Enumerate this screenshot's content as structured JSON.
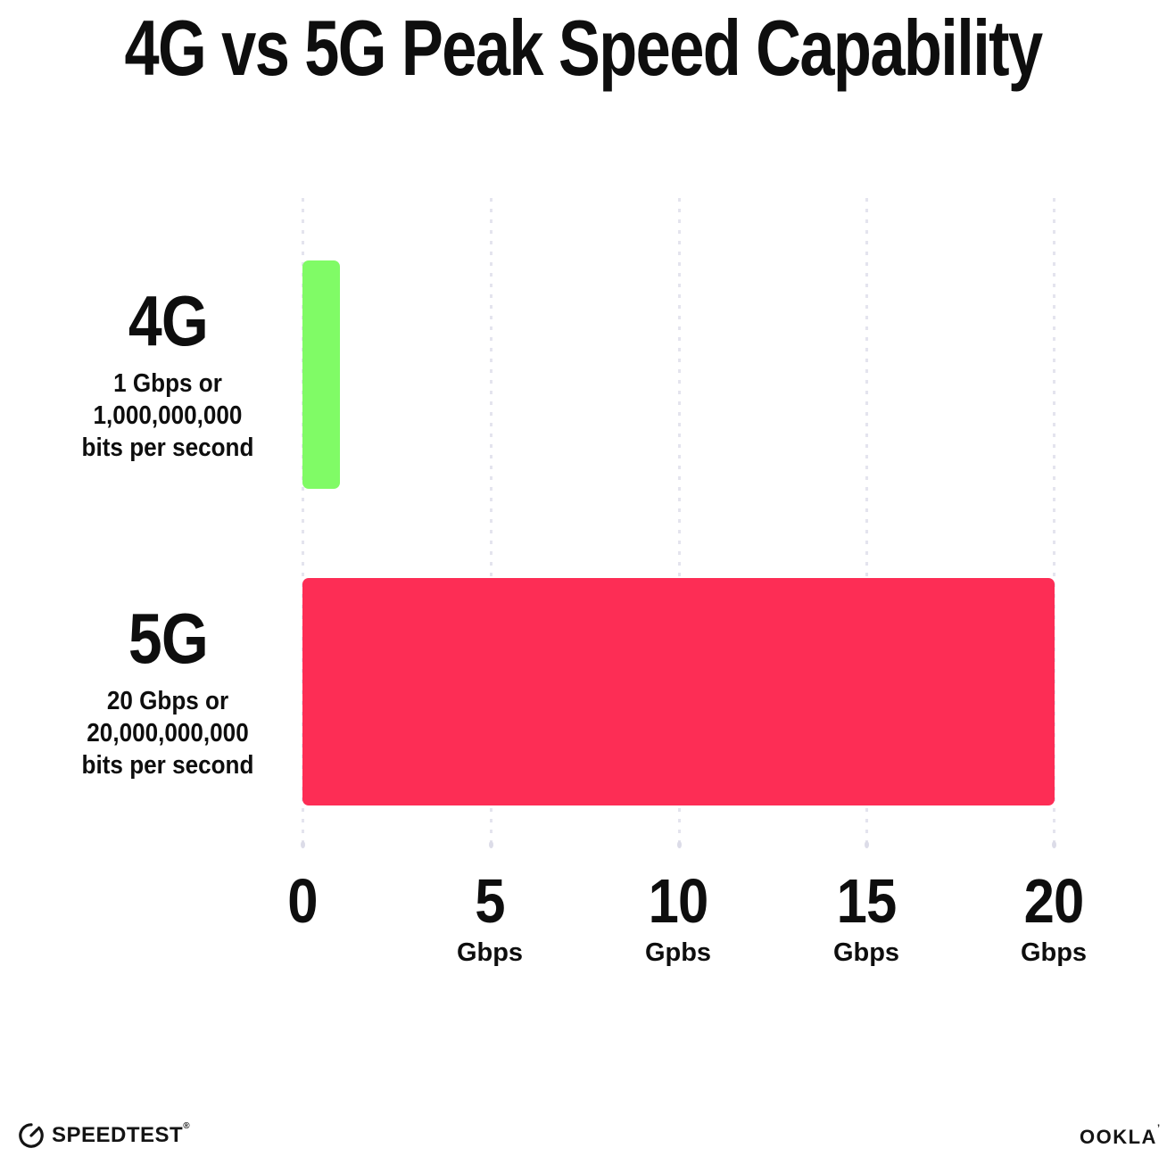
{
  "title": "4G vs 5G Peak Speed Capability",
  "colors": {
    "background": "#ffffff",
    "text": "#0e0e0e",
    "grid": "#e4e4ee",
    "bar_4g_green": "#80FB66",
    "bar_5g_red": "#FD2D55"
  },
  "chart_data": {
    "type": "bar",
    "orientation": "horizontal",
    "title": "4G vs 5G Peak Speed Capability",
    "categories": [
      "4G",
      "5G"
    ],
    "values": [
      1,
      20
    ],
    "unit": "Gbps",
    "xlim": [
      0,
      20
    ],
    "xlabel": "",
    "ylabel": "",
    "grid": "vertical dotted gridlines every 5 Gbps",
    "legend": "none",
    "bar_colors": [
      "#80FB66",
      "#FD2D55"
    ],
    "x_ticks": [
      {
        "label": "0",
        "unit": ""
      },
      {
        "label": "5",
        "unit": "Gbps"
      },
      {
        "label": "10",
        "unit": "Gpbs"
      },
      {
        "label": "15",
        "unit": "Gbps"
      },
      {
        "label": "20",
        "unit": "Gbps"
      }
    ],
    "series_labels": [
      {
        "name": "4G",
        "sub1": "1 Gbps or",
        "sub2": "1,000,000,000",
        "sub3": "bits per second"
      },
      {
        "name": "5G",
        "sub1": "20 Gbps or",
        "sub2": "20,000,000,000",
        "sub3": "bits per second"
      }
    ]
  },
  "footer": {
    "speedtest_label": "SPEEDTEST",
    "speedtest_mark": "®",
    "ookla_label": "OOKLA",
    "ookla_mark": "’"
  }
}
